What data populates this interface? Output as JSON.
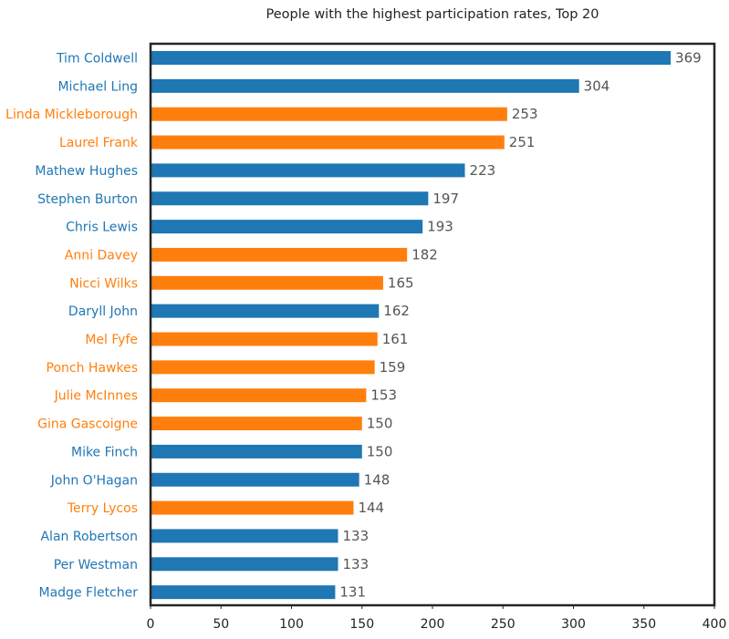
{
  "chart_data": {
    "type": "bar",
    "orientation": "horizontal",
    "title": "People with the highest participation rates, Top 20",
    "xlabel": "",
    "ylabel": "",
    "xlim": [
      0,
      400
    ],
    "x_ticks": [
      0,
      50,
      100,
      150,
      200,
      250,
      300,
      350,
      400
    ],
    "grid": false,
    "colors": {
      "blue": "#1f77b4",
      "orange": "#ff7f0e",
      "value_label": "#555555",
      "frame": "#262626"
    },
    "bars": [
      {
        "label": "Tim Coldwell",
        "value": 369,
        "color": "blue"
      },
      {
        "label": "Michael Ling",
        "value": 304,
        "color": "blue"
      },
      {
        "label": "Linda Mickleborough",
        "value": 253,
        "color": "orange"
      },
      {
        "label": "Laurel Frank",
        "value": 251,
        "color": "orange"
      },
      {
        "label": "Mathew Hughes",
        "value": 223,
        "color": "blue"
      },
      {
        "label": "Stephen Burton",
        "value": 197,
        "color": "blue"
      },
      {
        "label": "Chris Lewis",
        "value": 193,
        "color": "blue"
      },
      {
        "label": "Anni Davey",
        "value": 182,
        "color": "orange"
      },
      {
        "label": "Nicci Wilks",
        "value": 165,
        "color": "orange"
      },
      {
        "label": "Daryll John",
        "value": 162,
        "color": "blue"
      },
      {
        "label": "Mel Fyfe",
        "value": 161,
        "color": "orange"
      },
      {
        "label": "Ponch Hawkes",
        "value": 159,
        "color": "orange"
      },
      {
        "label": "Julie McInnes",
        "value": 153,
        "color": "orange"
      },
      {
        "label": "Gina Gascoigne",
        "value": 150,
        "color": "orange"
      },
      {
        "label": "Mike Finch",
        "value": 150,
        "color": "blue"
      },
      {
        "label": "John O'Hagan",
        "value": 148,
        "color": "blue"
      },
      {
        "label": "Terry Lycos",
        "value": 144,
        "color": "orange"
      },
      {
        "label": "Alan Robertson",
        "value": 133,
        "color": "blue"
      },
      {
        "label": "Per Westman",
        "value": 133,
        "color": "blue"
      },
      {
        "label": "Madge Fletcher",
        "value": 131,
        "color": "blue"
      }
    ]
  }
}
